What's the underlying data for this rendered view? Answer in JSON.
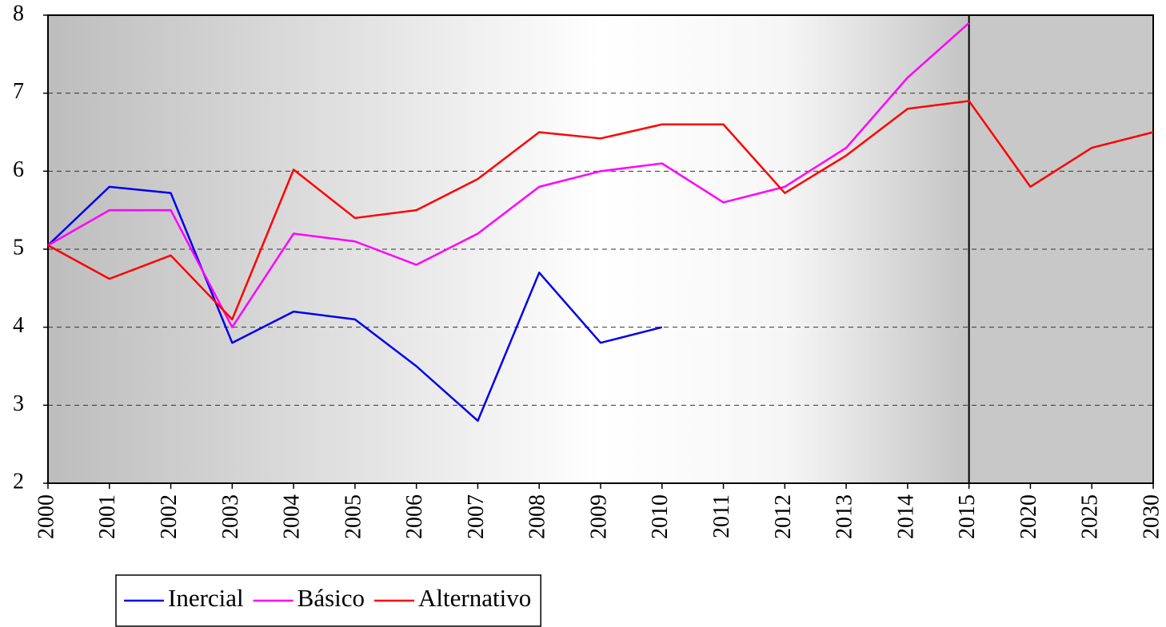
{
  "chart_data": {
    "type": "line",
    "categories": [
      "2000",
      "2001",
      "2002",
      "2003",
      "2004",
      "2005",
      "2006",
      "2007",
      "2008",
      "2009",
      "2010",
      "2011",
      "2012",
      "2013",
      "2014",
      "2015",
      "2020",
      "2025",
      "2030"
    ],
    "series": [
      {
        "name": "Inercial",
        "color": "#0000ee",
        "values": [
          5.05,
          5.8,
          5.72,
          3.8,
          4.2,
          4.1,
          3.5,
          2.8,
          4.7,
          3.8,
          4.0,
          null,
          null,
          null,
          null,
          null,
          null,
          null,
          null
        ]
      },
      {
        "name": "Básico",
        "color": "#ff00ff",
        "values": [
          5.05,
          5.5,
          5.5,
          4.0,
          5.2,
          5.1,
          4.8,
          5.2,
          5.8,
          6.0,
          6.1,
          5.6,
          5.8,
          6.3,
          7.2,
          7.9,
          null,
          null,
          null
        ]
      },
      {
        "name": "Alternativo",
        "color": "#ff0000",
        "values": [
          5.05,
          4.62,
          4.92,
          4.1,
          6.02,
          5.4,
          5.5,
          5.9,
          6.5,
          6.42,
          6.6,
          6.6,
          5.72,
          6.2,
          6.8,
          6.9,
          5.8,
          6.3,
          6.5
        ]
      }
    ],
    "ylim": [
      2,
      8
    ],
    "yticks": [
      2,
      3,
      4,
      5,
      6,
      7,
      8
    ],
    "grid": true,
    "legend": "bottom"
  }
}
